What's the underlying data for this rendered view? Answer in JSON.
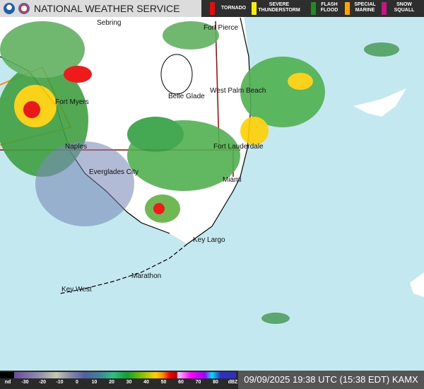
{
  "header": {
    "title": "NATIONAL WEATHER SERVICE",
    "warnings": [
      {
        "label": "TORNADO",
        "color": "#ff0000"
      },
      {
        "label": "SEVERE THUNDERSTORM",
        "color": "#ffee00"
      },
      {
        "label": "FLASH FLOOD",
        "color": "#228b22"
      },
      {
        "label": "SPECIAL MARINE",
        "color": "#ffa500"
      },
      {
        "label": "SNOW SQUALL",
        "color": "#c71585"
      }
    ]
  },
  "cities": [
    "Sebring",
    "Fort Pierce",
    "Belle Glade",
    "West Palm Beach",
    "Fort Myers",
    "Naples",
    "Fort Lauderdale",
    "Everglades City",
    "Miami",
    "Key Largo",
    "Marathon",
    "Key West"
  ],
  "legend": {
    "ticks": [
      "nd",
      "-30",
      "-20",
      "-10",
      "0",
      "10",
      "20",
      "30",
      "40",
      "50",
      "60",
      "70",
      "80",
      "dBZ"
    ]
  },
  "timestamp": "09/09/2025 19:38 UTC (15:38 EDT) KAMX"
}
